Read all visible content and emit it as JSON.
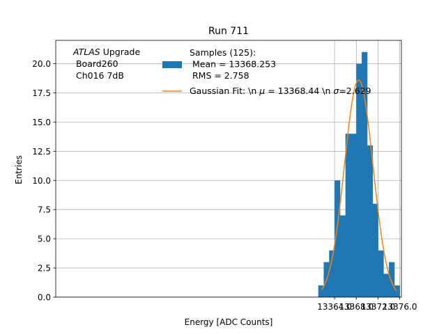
{
  "chart_data": {
    "type": "bar",
    "title": "Run 711",
    "xlabel": "Energy [ADC Counts]",
    "ylabel": "Entries",
    "xlim": [
      12.7,
      76.3
    ],
    "ylim": [
      0,
      22
    ],
    "grid": true,
    "legend_position": "top-right",
    "x_ticks": [
      {
        "value": 64,
        "label": "13364.0"
      },
      {
        "value": 68,
        "label": "13368.0"
      },
      {
        "value": 72,
        "label": "13372.0"
      },
      {
        "value": 76,
        "label": "13376.0"
      }
    ],
    "y_ticks": [
      {
        "value": 0,
        "label": "0.0"
      },
      {
        "value": 2.5,
        "label": "2.5"
      },
      {
        "value": 5,
        "label": "5.0"
      },
      {
        "value": 7.5,
        "label": "7.5"
      },
      {
        "value": 10,
        "label": "10.0"
      },
      {
        "value": 12.5,
        "label": "12.5"
      },
      {
        "value": 15,
        "label": "15.0"
      },
      {
        "value": 17.5,
        "label": "17.5"
      },
      {
        "value": 20,
        "label": "20.0"
      }
    ],
    "histogram": {
      "bin_edges": [
        13361.0,
        13362.0,
        13363.0,
        13364.0,
        13365.0,
        13366.0,
        13367.0,
        13368.0,
        13369.0,
        13370.0,
        13371.0,
        13372.0,
        13373.0,
        13374.0,
        13375.0,
        13376.0
      ],
      "counts": [
        1,
        3,
        4,
        10,
        7,
        14,
        14,
        20,
        21,
        13,
        8,
        4,
        2,
        3,
        1
      ],
      "color": "#1f77b4"
    },
    "fit": {
      "type": "gaussian",
      "mu": 13368.44,
      "sigma": 2.629,
      "amplitude": 18.6,
      "x_range": [
        13361.6,
        13375.4
      ],
      "color": "#ff7f0e"
    },
    "legend": [
      {
        "label_lines": [
          "Samples (125):",
          " Mean = 13368.253",
          " RMS = 2.758"
        ],
        "kind": "patch",
        "color": "#1f77b4"
      },
      {
        "label_html": "Gaussian Fit: \\n <tspan font-style=\"italic\">μ</tspan> = 13368.44 \\n <tspan font-style=\"italic\">σ</tspan>=2.629",
        "kind": "line",
        "color": "#ff7f0e"
      }
    ],
    "annotation": {
      "line1_italic": "ATLAS",
      "line1_rest": " Upgrade",
      "line2": " Board260",
      "line3": " Ch016 7dB"
    }
  }
}
